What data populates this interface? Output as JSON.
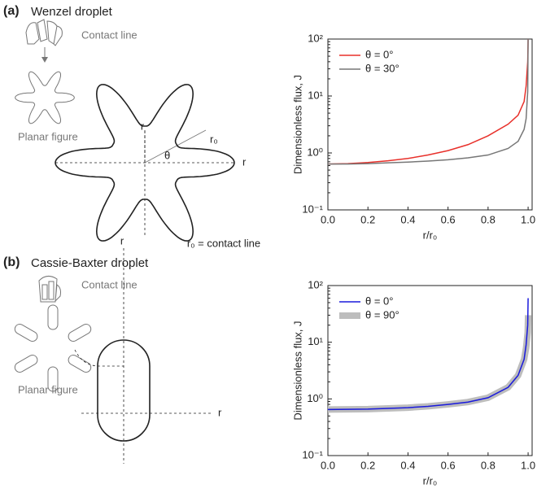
{
  "panels": [
    {
      "label": "(a)",
      "title": "Wenzel droplet",
      "contact_line": "Contact line",
      "planar_figure": "Planar figure",
      "axis_r": "r",
      "angle": "θ",
      "radius": "r₀",
      "note": "r₀ = contact line"
    },
    {
      "label": "(b)",
      "title": "Cassie-Baxter droplet",
      "contact_line": "Contact line",
      "planar_figure": "Planar figure",
      "axis_r": "r"
    }
  ],
  "chart_data": [
    {
      "type": "line",
      "y_label": "Dimensionless flux, J",
      "x_label": "r/r₀",
      "log_y": true,
      "legend": "upper left",
      "xlim": [
        0,
        1.02
      ],
      "ylim": [
        0.1,
        100
      ],
      "xticks": [
        {
          "value": 0,
          "label": "0.0"
        },
        0.2,
        0.4,
        0.6,
        0.8,
        {
          "value": 1,
          "label": "1.0"
        }
      ],
      "yticks": [
        {
          "value": 0.1,
          "label": "10⁻¹"
        },
        {
          "value": 1,
          "label": "10⁰"
        },
        {
          "value": 10,
          "label": "10¹"
        },
        {
          "value": 100,
          "label": "10²"
        }
      ],
      "x": [
        0,
        0.1,
        0.2,
        0.3,
        0.4,
        0.5,
        0.6,
        0.7,
        0.8,
        0.9,
        0.95,
        0.98,
        0.99,
        0.998,
        1.0
      ],
      "series": [
        {
          "name": "θ = 0°",
          "color": "#e8302a",
          "width": 1.5,
          "values": [
            0.64,
            0.65,
            0.68,
            0.73,
            0.8,
            0.92,
            1.1,
            1.4,
            2.0,
            3.2,
            4.6,
            8,
            15,
            40,
            100
          ]
        },
        {
          "name": "θ = 30°",
          "color": "#777777",
          "width": 1.5,
          "values": [
            0.64,
            0.64,
            0.65,
            0.67,
            0.69,
            0.72,
            0.76,
            0.82,
            0.92,
            1.2,
            1.6,
            2.6,
            4,
            12,
            100
          ]
        }
      ]
    },
    {
      "type": "line",
      "y_label": "Dimensionless flux, J",
      "x_label": "r/r₀",
      "log_y": true,
      "legend": "upper left",
      "xlim": [
        0,
        1.02
      ],
      "ylim": [
        0.1,
        100
      ],
      "xticks": [
        {
          "value": 0,
          "label": "0.0"
        },
        0.2,
        0.4,
        0.6,
        0.8,
        {
          "value": 1,
          "label": "1.0"
        }
      ],
      "yticks": [
        {
          "value": 0.1,
          "label": "10⁻¹"
        },
        {
          "value": 1,
          "label": "10⁰"
        },
        {
          "value": 10,
          "label": "10¹"
        },
        {
          "value": 100,
          "label": "10²"
        }
      ],
      "x": [
        0,
        0.1,
        0.2,
        0.3,
        0.4,
        0.5,
        0.6,
        0.7,
        0.8,
        0.9,
        0.95,
        0.98,
        0.99,
        0.998,
        1.0
      ],
      "series": [
        {
          "name": "θ = 90°",
          "color": "#bdbdbd",
          "width": 8,
          "values": [
            0.65,
            0.655,
            0.66,
            0.68,
            0.7,
            0.74,
            0.8,
            0.88,
            1.05,
            1.6,
            2.6,
            5,
            8,
            15,
            30
          ]
        },
        {
          "name": "θ = 0°",
          "color": "#1a1adc",
          "width": 1.5,
          "values": [
            0.65,
            0.655,
            0.66,
            0.68,
            0.7,
            0.74,
            0.8,
            0.88,
            1.05,
            1.6,
            2.6,
            5,
            9,
            20,
            60
          ]
        }
      ]
    }
  ]
}
